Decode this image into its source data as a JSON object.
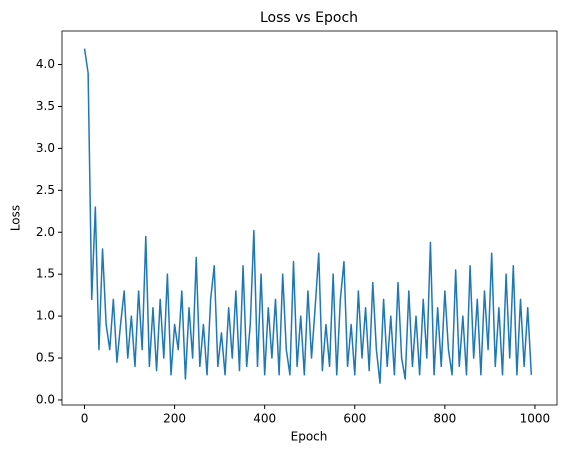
{
  "chart_data": {
    "type": "line",
    "title": "Loss vs Epoch",
    "x_label": "Epoch",
    "y_label": "Loss",
    "x": [
      0,
      8,
      16,
      24,
      32,
      40,
      48,
      56,
      64,
      72,
      80,
      88,
      96,
      104,
      112,
      120,
      128,
      136,
      144,
      152,
      160,
      168,
      176,
      184,
      192,
      200,
      208,
      216,
      224,
      232,
      240,
      248,
      256,
      264,
      272,
      280,
      288,
      296,
      304,
      312,
      320,
      328,
      336,
      344,
      352,
      360,
      368,
      376,
      384,
      392,
      400,
      408,
      416,
      424,
      432,
      440,
      448,
      456,
      464,
      472,
      480,
      488,
      496,
      504,
      512,
      520,
      528,
      536,
      544,
      552,
      560,
      568,
      576,
      584,
      592,
      600,
      608,
      616,
      624,
      632,
      640,
      648,
      656,
      664,
      672,
      680,
      688,
      696,
      704,
      712,
      720,
      728,
      736,
      744,
      752,
      760,
      768,
      776,
      784,
      792,
      800,
      808,
      816,
      824,
      832,
      840,
      848,
      856,
      864,
      872,
      880,
      888,
      896,
      904,
      912,
      920,
      928,
      936,
      944,
      952,
      960,
      968,
      976,
      984,
      992
    ],
    "series": [
      {
        "name": "Loss",
        "color": "#1f77b4",
        "values": [
          4.19,
          3.9,
          1.2,
          2.3,
          0.6,
          1.8,
          0.9,
          0.6,
          1.2,
          0.45,
          0.9,
          1.3,
          0.5,
          1.0,
          0.4,
          1.3,
          0.6,
          1.95,
          0.4,
          1.1,
          0.35,
          1.2,
          0.5,
          1.5,
          0.3,
          0.9,
          0.6,
          1.3,
          0.25,
          1.1,
          0.5,
          1.7,
          0.4,
          0.9,
          0.3,
          1.2,
          1.6,
          0.4,
          0.8,
          0.3,
          1.1,
          0.5,
          1.3,
          0.35,
          1.6,
          0.4,
          0.9,
          2.02,
          0.4,
          1.5,
          0.3,
          1.1,
          0.5,
          1.2,
          0.3,
          1.5,
          0.6,
          0.3,
          1.65,
          0.4,
          1.0,
          0.3,
          1.3,
          0.5,
          1.1,
          1.75,
          0.35,
          0.9,
          0.4,
          1.5,
          0.3,
          1.2,
          1.65,
          0.4,
          0.9,
          0.3,
          1.3,
          0.5,
          1.1,
          0.35,
          1.4,
          0.6,
          0.2,
          1.2,
          0.4,
          1.0,
          0.3,
          1.4,
          0.5,
          0.25,
          1.3,
          0.4,
          1.0,
          0.3,
          1.2,
          0.5,
          1.88,
          0.3,
          1.1,
          0.4,
          1.3,
          0.6,
          0.3,
          1.55,
          0.4,
          1.0,
          0.3,
          1.6,
          0.5,
          1.2,
          0.3,
          1.3,
          0.6,
          1.75,
          0.4,
          1.1,
          0.3,
          1.5,
          0.5,
          1.6,
          0.3,
          1.2,
          0.4,
          1.1,
          0.3
        ]
      }
    ],
    "xlim": [
      -50,
      1049
    ],
    "ylim": [
      -0.06,
      4.4
    ],
    "xticks": [
      0,
      200,
      400,
      600,
      800,
      1000
    ],
    "yticks": [
      {
        "value": 0,
        "label": "0.0"
      },
      {
        "value": 0.5,
        "label": "0.5"
      },
      {
        "value": 1,
        "label": "1.0"
      },
      {
        "value": 1.5,
        "label": "1.5"
      },
      {
        "value": 2,
        "label": "2.0"
      },
      {
        "value": 2.5,
        "label": "2.5"
      },
      {
        "value": 3,
        "label": "3.0"
      },
      {
        "value": 3.5,
        "label": "3.5"
      },
      {
        "value": 4,
        "label": "4.0"
      }
    ],
    "grid": false
  }
}
